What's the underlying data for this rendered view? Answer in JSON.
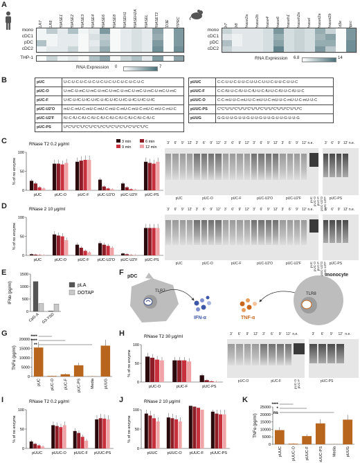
{
  "panels": {
    "A": {
      "letter": "A"
    },
    "B": {
      "letter": "B"
    },
    "C": {
      "letter": "C",
      "title": "RNase T2 0.2 μg/ml"
    },
    "D": {
      "letter": "D",
      "title": "RNase 2 10 μg/ml"
    },
    "E": {
      "letter": "E"
    },
    "F": {
      "letter": "F"
    },
    "G": {
      "letter": "G"
    },
    "H": {
      "letter": "H",
      "title": "RNase T2 30 μg/ml"
    },
    "I": {
      "letter": "I",
      "title": "RNase T2 0.2 μg/ml"
    },
    "J": {
      "letter": "J",
      "title": "RNase 2 10 μg/ml"
    },
    "K": {
      "letter": "K"
    }
  },
  "heatmap_human": {
    "columns": [
      "TLR7",
      "TLR8",
      "RNASE1",
      "RNASE2",
      "RNASE3",
      "RNASE4",
      "RNASE6",
      "RNASE8",
      "RNASEH1",
      "RNASEH2A",
      "RNASEL",
      "RNASET2",
      "CD3E",
      "PTPRC"
    ],
    "rows": [
      "mono",
      "cDC1",
      "pDC",
      "cDC2"
    ],
    "row2": [
      "THP-1"
    ],
    "legend_label": "RNA Expression",
    "legend_min": "0",
    "legend_max": "7",
    "values": [
      [
        0.5,
        2.5,
        1,
        3,
        0.5,
        1,
        5,
        0.3,
        1,
        1.5,
        1,
        4.5,
        0.2,
        5
      ],
      [
        0.5,
        0.5,
        1,
        1,
        0.3,
        1.5,
        2.5,
        0.3,
        1,
        1.5,
        1,
        4,
        0.2,
        5
      ],
      [
        3,
        0.5,
        1,
        1,
        0.3,
        1,
        3,
        0.3,
        1,
        1.5,
        1,
        5,
        0.2,
        5
      ],
      [
        0.5,
        1,
        1,
        2,
        0.3,
        1.5,
        4,
        0.3,
        1,
        1.5,
        1,
        5.5,
        0.2,
        5.5
      ]
    ],
    "thp1": [
      0.2,
      2,
      0.5,
      1,
      0.3,
      3,
      4.5,
      0.3,
      2,
      3,
      1,
      5,
      0.2,
      4.5
    ]
  },
  "heatmap_mouse": {
    "columns": [
      "Tlr7",
      "Tlr8",
      "Rnase2a",
      "Rnase2b",
      "Rnase4",
      "Rnase6",
      "Rnaseh1",
      "Rnaseh2a",
      "Rnasel",
      "Rnaset2a",
      "Rnaset2b",
      "Cd3e",
      "Ptprc"
    ],
    "rows": [
      "mono",
      "cDC1",
      "pDC",
      "cDC2"
    ],
    "legend_label": "RNA Expression",
    "legend_min": "6.8",
    "legend_max": "14",
    "values": [
      [
        9,
        8,
        8,
        8,
        8.5,
        12,
        8.5,
        9,
        8.5,
        11,
        9,
        7,
        12
      ],
      [
        8,
        7.5,
        8,
        8,
        8.5,
        11,
        8.5,
        9,
        8.5,
        10.5,
        11.5,
        7,
        12
      ],
      [
        10,
        7.5,
        8,
        8,
        8.5,
        11.5,
        8.5,
        9,
        8.5,
        11,
        11,
        7,
        12.5
      ],
      [
        9,
        8,
        8,
        8,
        8.5,
        13,
        8.5,
        9,
        8.5,
        12,
        9.5,
        7,
        12.5
      ]
    ]
  },
  "sequences_left": [
    {
      "name": "pUC",
      "seq": "U-C-U-C-U-C-U-C-U-C-U-C-U-C-U-C-U-C-U-C"
    },
    {
      "name": "pUC-O",
      "seq": "U-mC-U-mC-U-mC-U-mC-U-mC-U-mC-U-mC-U-mC-U-mC-U-mC"
    },
    {
      "name": "pUC-F",
      "seq": "U-fC-U-fC-U-fC-U-fC-U-fC-U-fC-U-fC-U-fC-U-fC-U-fC"
    },
    {
      "name": "pUC-U2'O",
      "seq": "mU-C-mU-C-mU-C-mU-C-mU-C-mU-C-mU-C-mU-C-mU-C-mU-C"
    },
    {
      "name": "pUC-U2'F",
      "seq": "fU-C-fU-C-fU-C-fU-C-fU-C-fU-C-fU-C-fU-C-fU-C-fU-C"
    },
    {
      "name": "pUC-PS",
      "seq": "U*C*U*C*U*C*U*C*U*C*U*C*U*C*U*C*U*C*U*C"
    }
  ],
  "sequences_right": [
    {
      "name": "pUUC",
      "seq": "C-C-U-U-C-U-U-C-U-U-C-U-U-C-U-U-C-U-U-C"
    },
    {
      "name": "pUUC-F",
      "seq": "C-C-fU-U-C-fU-U-C-fU-U-C-fU-U-C-fU-U-C-fU-U-C"
    },
    {
      "name": "pUUC-O",
      "seq": "C-C-mU-U-C-mU-U-C-mU-U-C-mU-U-C-mU-U-C-mU-U-C"
    },
    {
      "name": "pUUC-PS",
      "seq": "C*C*U*U*C*U*U*C*U*U*C*U*U*C*U*U*C*U*U*C"
    },
    {
      "name": "pUUG",
      "seq": "G-G-U-U-G-U-U-G-U-U-G-U-U-G-U-U-G-U-U-G"
    }
  ],
  "legend_times": [
    "3 min",
    "6 min",
    "9 min",
    "12 min"
  ],
  "colors": {
    "t3": "#2b0a0d",
    "t6": "#8c1c26",
    "t9": "#c7303c",
    "t12": "#f0a3a6",
    "pLA": "#555555",
    "DOTAP": "#c8c8c8",
    "orange": "#b8651d",
    "heat": "#4a7079"
  },
  "chart_data": [
    {
      "id": "C",
      "type": "bar",
      "ylabel": "% of no enzyme",
      "ylim": [
        0,
        100
      ],
      "yticks": [
        "0",
        "50",
        "100"
      ],
      "categories": [
        "pUC",
        "pUC-O",
        "pUC-F",
        "pUC-U2'O",
        "pUC-U2'F",
        "pUC-PS"
      ],
      "series": [
        {
          "name": "3 min",
          "values": [
            25,
            70,
            75,
            28,
            18,
            75
          ]
        },
        {
          "name": "6 min",
          "values": [
            18,
            70,
            78,
            10,
            8,
            72
          ]
        },
        {
          "name": "9 min",
          "values": [
            8,
            68,
            80,
            5,
            3,
            70
          ]
        },
        {
          "name": "12 min",
          "values": [
            5,
            72,
            80,
            3,
            2,
            75
          ]
        }
      ]
    },
    {
      "id": "D",
      "type": "bar",
      "ylabel": "% of no enzyme",
      "ylim": [
        0,
        100
      ],
      "yticks": [
        "0",
        "50",
        "100"
      ],
      "categories": [
        "pUC",
        "pUC-O",
        "pUC-F",
        "pUC-U2'O",
        "pUC-U2'F",
        "pUC-PS"
      ],
      "series": [
        {
          "name": "3 min",
          "values": [
            3,
            55,
            28,
            32,
            5,
            72
          ]
        },
        {
          "name": "6 min",
          "values": [
            2,
            52,
            20,
            28,
            3,
            72
          ]
        },
        {
          "name": "9 min",
          "values": [
            1,
            50,
            12,
            25,
            1,
            72
          ]
        },
        {
          "name": "12 min",
          "values": [
            1,
            40,
            8,
            20,
            1,
            72
          ]
        }
      ]
    },
    {
      "id": "E",
      "type": "bar",
      "ylabel": "IFNα (pg/ml)",
      "ylim": [
        0,
        1500
      ],
      "yticks": [
        "0",
        "500",
        "1000",
        "1500"
      ],
      "categories": [
        "CpG-A",
        "G3-YSD"
      ],
      "series": [
        {
          "name": "pLA",
          "values": [
            1200,
            20
          ]
        },
        {
          "name": "DOTAP",
          "values": [
            320,
            300
          ]
        }
      ],
      "legend": [
        "pLA",
        "DOTAP"
      ]
    },
    {
      "id": "G",
      "type": "bar",
      "ylabel": "TNFα (pg/ml)",
      "ylim": [
        0,
        20000
      ],
      "yticks": [
        "0",
        "5000",
        "10000",
        "15000",
        "20000"
      ],
      "categories": [
        "pUC",
        "pUC-O",
        "pUC-F",
        "pUC-PS",
        "Media",
        "pUUG"
      ],
      "values": [
        15500,
        300,
        1200,
        6000,
        100,
        16500
      ],
      "annotations": [
        "****",
        "****",
        "**"
      ]
    },
    {
      "id": "H",
      "type": "bar",
      "ylabel": "% of no enzyme",
      "ylim": [
        0,
        100
      ],
      "yticks": [
        "0",
        "50",
        "100"
      ],
      "categories": [
        "pUC-O",
        "pUC-F",
        "pUC-PS"
      ],
      "series": [
        {
          "name": "3 min",
          "values": [
            68,
            58,
            18
          ]
        },
        {
          "name": "6 min",
          "values": [
            65,
            58,
            5
          ]
        },
        {
          "name": "9 min",
          "values": [
            60,
            58,
            2
          ]
        },
        {
          "name": "12 min",
          "values": [
            58,
            55,
            1
          ]
        }
      ]
    },
    {
      "id": "I",
      "type": "bar",
      "ylabel": "% of no enzyme",
      "ylim": [
        0,
        100
      ],
      "yticks": [
        "0",
        "50",
        "100"
      ],
      "categories": [
        "pUUC",
        "pUUC-O",
        "pUUC-F",
        "pUUC-PS"
      ],
      "series": [
        {
          "name": "3 min",
          "values": [
            18,
            60,
            45,
            75
          ]
        },
        {
          "name": "6 min",
          "values": [
            12,
            58,
            40,
            78
          ]
        },
        {
          "name": "9 min",
          "values": [
            8,
            55,
            30,
            77
          ]
        },
        {
          "name": "12 min",
          "values": [
            5,
            60,
            20,
            75
          ]
        }
      ]
    },
    {
      "id": "J",
      "type": "bar",
      "ylabel": "% of no enzyme",
      "ylim": [
        0,
        100
      ],
      "yticks": [
        "0",
        "50",
        "100"
      ],
      "categories": [
        "pUUC",
        "pUUC-O",
        "pUUC-F",
        "pUUC-PS"
      ],
      "series": [
        {
          "name": "3 min",
          "values": [
            90,
            80,
            110,
            95
          ]
        },
        {
          "name": "6 min",
          "values": [
            85,
            78,
            108,
            90
          ]
        },
        {
          "name": "9 min",
          "values": [
            78,
            75,
            105,
            88
          ]
        },
        {
          "name": "12 min",
          "values": [
            70,
            70,
            100,
            88
          ]
        }
      ]
    },
    {
      "id": "K",
      "type": "bar",
      "ylabel": "TNFα (pg/ml)",
      "ylim": [
        0,
        25000
      ],
      "yticks": [
        "0",
        "5000",
        "10000",
        "15000",
        "20000",
        "25000"
      ],
      "categories": [
        "pUUC",
        "pUUC-O",
        "pUUC-F",
        "pUUC-PS",
        "Media",
        "pUUG"
      ],
      "values": [
        9500,
        400,
        5500,
        14000,
        100,
        16500
      ],
      "annotations": [
        "****",
        "*",
        "ns"
      ]
    }
  ],
  "gel_C": {
    "times": [
      "3'",
      "6'",
      "9'",
      "12'"
    ],
    "lanes": [
      "pUC",
      "pUC-O",
      "pUC-F",
      "pUC-U2'O",
      "pUC-U2'F"
    ],
    "ne": "n.e.",
    "ne_stack": [
      "pUC",
      "pUC-O",
      "pUC-F",
      "pUC-U2'O",
      "pUC-U2'F"
    ],
    "side": "pUC-PS"
  },
  "gel_D": {
    "times": [
      "3'",
      "6'",
      "9'",
      "12'"
    ],
    "lanes": [
      "pUC",
      "pUC-O",
      "pUC-F",
      "pUC-U2'O",
      "pUC-U2'F"
    ],
    "ne": "n.e.",
    "ne_stack": [
      "pUC",
      "pUC-O",
      "pUC-F",
      "pUC-U2'O",
      "pUC-U2'F"
    ],
    "side": "pUC-PS"
  },
  "gel_H": {
    "times": [
      "3'",
      "6'",
      "9'",
      "12'"
    ],
    "lanes": [
      "pUC-O",
      "pUC-F"
    ],
    "ne": "n.e.",
    "ne_stack": [
      "pUC-O",
      "pUC-F"
    ],
    "side": "pUC-PS"
  },
  "panelF": {
    "pdc": "pDC",
    "tlr7": "TLR7",
    "ifn": "IFN-α",
    "tnf": "TNF-α",
    "tlr8": "TLR8",
    "monocyte": "monocyte"
  }
}
